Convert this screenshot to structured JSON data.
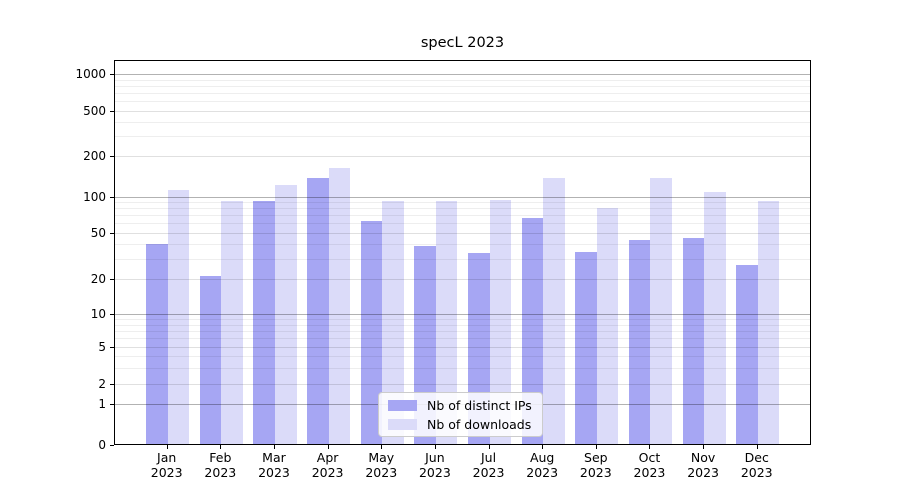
{
  "title": "specL 2023",
  "legend": {
    "items": [
      {
        "label": "Nb of distinct IPs",
        "color": "#a6a6f3"
      },
      {
        "label": "Nb of downloads",
        "color": "#dbdbf9"
      }
    ]
  },
  "chart_data": {
    "type": "bar",
    "title": "specL 2023",
    "categories": [
      "Jan 2023",
      "Feb 2023",
      "Mar 2023",
      "Apr 2023",
      "May 2023",
      "Jun 2023",
      "Jul 2023",
      "Aug 2023",
      "Sep 2023",
      "Oct 2023",
      "Nov 2023",
      "Dec 2023"
    ],
    "series": [
      {
        "name": "Nb of distinct IPs",
        "color": "#a6a6f3",
        "values": [
          40,
          21,
          90,
          135,
          62,
          38,
          33,
          65,
          34,
          43,
          45,
          26
        ]
      },
      {
        "name": "Nb of downloads",
        "color": "#dbdbf9",
        "values": [
          110,
          90,
          120,
          160,
          90,
          90,
          92,
          135,
          80,
          135,
          107,
          90
        ]
      }
    ],
    "xlabel": "",
    "ylabel": "",
    "yscale": "symlog",
    "yticks": [
      0,
      1,
      2,
      5,
      10,
      20,
      50,
      100,
      200,
      500,
      1000
    ],
    "ylim": [
      0,
      1300
    ],
    "grid": true,
    "legend_position": "lower center"
  }
}
